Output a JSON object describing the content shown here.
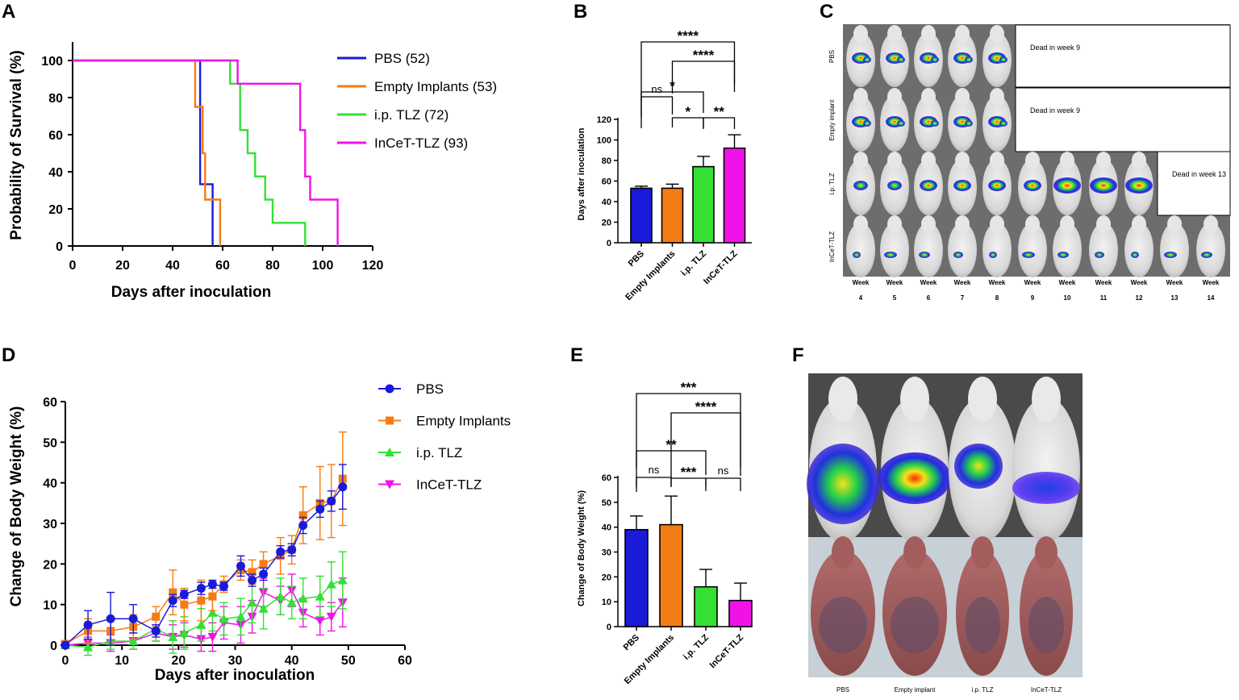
{
  "panels": {
    "A": "A",
    "B": "B",
    "C": "C",
    "D": "D",
    "E": "E",
    "F": "F"
  },
  "colors": {
    "PBS": "#1a1adb",
    "Empty": "#f47c14",
    "ip": "#33e033",
    "InCeT": "#f013e8"
  },
  "chart_data": [
    {
      "id": "A",
      "type": "line",
      "subtype": "kaplan-meier",
      "title": "",
      "xlabel": "Days after inoculation",
      "ylabel": "Probability of Survival (%)",
      "xlim": [
        0,
        120
      ],
      "ylim": [
        0,
        100
      ],
      "xticks": [
        "0",
        "20",
        "40",
        "60",
        "80",
        "100",
        "120"
      ],
      "yticks": [
        "0",
        "20",
        "40",
        "60",
        "80",
        "100"
      ],
      "legend_position": "right",
      "series": [
        {
          "key": "PBS",
          "name": "PBS (52)",
          "x": [
            0,
            51,
            51,
            53,
            53,
            56,
            56
          ],
          "y": [
            100,
            100,
            33.3,
            33.3,
            33.3,
            33.3,
            0
          ]
        },
        {
          "key": "Empty",
          "name": "Empty Implants (53)",
          "x": [
            0,
            49,
            49,
            51,
            51,
            52,
            52,
            53,
            53,
            56,
            56,
            59,
            59
          ],
          "y": [
            100,
            100,
            75,
            75,
            75,
            75,
            50,
            50,
            25,
            25,
            25,
            25,
            0
          ]
        },
        {
          "key": "ip",
          "name": "i.p. TLZ (72)",
          "x": [
            0,
            63,
            63,
            67,
            67,
            70,
            70,
            73,
            73,
            77,
            77,
            80,
            80,
            93,
            93
          ],
          "y": [
            100,
            100,
            87.5,
            87.5,
            62.5,
            62.5,
            50,
            50,
            37.5,
            37.5,
            25,
            25,
            12.5,
            12.5,
            0
          ]
        },
        {
          "key": "InCeT",
          "name": "InCeT-TLZ (93)",
          "x": [
            0,
            66,
            66,
            91,
            91,
            93,
            93,
            95,
            95,
            106,
            106
          ],
          "y": [
            100,
            100,
            87.5,
            87.5,
            62.5,
            62.5,
            37.5,
            37.5,
            25,
            25,
            0
          ]
        }
      ]
    },
    {
      "id": "B",
      "type": "bar",
      "xlabel": "",
      "ylabel": "Days after inoculation",
      "ylim": [
        0,
        120
      ],
      "yticks": [
        "0",
        "20",
        "40",
        "60",
        "80",
        "100",
        "120"
      ],
      "categories": [
        "PBS",
        "Empty Implants",
        "i.p. TLZ",
        "InCeT-TLZ"
      ],
      "values": [
        53,
        53,
        74,
        92
      ],
      "errors": [
        2,
        4,
        10,
        13
      ],
      "significance": [
        {
          "from": 0,
          "to": 3,
          "label": "****"
        },
        {
          "from": 1,
          "to": 3,
          "label": "****"
        },
        {
          "from": 0,
          "to": 2,
          "label": "*"
        },
        {
          "from": 0,
          "to": 1,
          "label": "ns"
        },
        {
          "from": 1,
          "to": 2,
          "label": "*"
        },
        {
          "from": 2,
          "to": 3,
          "label": "**"
        }
      ]
    },
    {
      "id": "C",
      "type": "table",
      "row_labels": [
        "PBS",
        "Empty implant",
        "i.p. TLZ",
        "InCeT-TLZ"
      ],
      "column_labels": [
        "Week",
        "Week",
        "Week",
        "Week",
        "Week",
        "Week",
        "Week",
        "Week",
        "Week",
        "Week",
        "Week"
      ],
      "weeks": [
        "4",
        "5",
        "6",
        "7",
        "8",
        "9",
        "10",
        "11",
        "12",
        "13",
        "14"
      ],
      "alive_weeks": [
        5,
        5,
        9,
        11
      ],
      "notes": [
        "Dead in week 9",
        "Dead in week 9",
        "Dead in week 13",
        ""
      ]
    },
    {
      "id": "D",
      "type": "line",
      "xlabel": "Days after inoculation",
      "ylabel": "Change of Body Weight (%)",
      "xlim": [
        0,
        60
      ],
      "ylim": [
        0,
        60
      ],
      "xticks": [
        "0",
        "10",
        "20",
        "30",
        "40",
        "50",
        "60"
      ],
      "yticks": [
        "0",
        "10",
        "20",
        "30",
        "40",
        "50",
        "60"
      ],
      "legend_position": "top-right",
      "series": [
        {
          "key": "PBS",
          "name": "PBS",
          "marker": "circle",
          "x": [
            0,
            4,
            8,
            12,
            16,
            19,
            21,
            24,
            26,
            28,
            31,
            33,
            35,
            38,
            40,
            42,
            45,
            47,
            49
          ],
          "y": [
            0,
            5,
            6.5,
            6.5,
            3.5,
            11,
            12.5,
            14,
            15,
            14.5,
            19.5,
            16,
            17.5,
            23,
            23.5,
            29.5,
            33.5,
            35.5,
            39
          ],
          "err": [
            0.5,
            3.5,
            6.5,
            3.5,
            1.5,
            1.5,
            1,
            1.5,
            1,
            1,
            2.5,
            1.5,
            1.5,
            1.5,
            1.5,
            2,
            2,
            2.5,
            5.5
          ]
        },
        {
          "key": "Empty",
          "name": "Empty Implants",
          "marker": "square",
          "x": [
            0,
            4,
            8,
            12,
            16,
            19,
            21,
            24,
            26,
            28,
            31,
            33,
            35,
            38,
            40,
            42,
            45,
            47,
            49
          ],
          "y": [
            0.3,
            3.5,
            3.5,
            4.5,
            7,
            13,
            10,
            11,
            12,
            15,
            18.5,
            18,
            20,
            22,
            23.5,
            32,
            35,
            35.5,
            41
          ],
          "err": [
            0.5,
            3,
            3,
            3,
            2.5,
            5.5,
            4,
            5,
            3.5,
            2,
            2.5,
            3,
            3,
            4.5,
            3.5,
            7,
            9,
            9,
            11.5
          ]
        },
        {
          "key": "ip",
          "name": "i.p. TLZ",
          "marker": "triangle-up",
          "x": [
            0,
            4,
            8,
            12,
            16,
            19,
            21,
            24,
            26,
            28,
            31,
            33,
            35,
            38,
            40,
            42,
            45,
            47,
            49
          ],
          "y": [
            0,
            -0.5,
            1,
            1,
            4,
            2,
            3,
            5,
            8,
            6.5,
            7,
            10.5,
            9,
            12,
            10.5,
            11.5,
            12,
            15,
            16
          ],
          "err": [
            0.5,
            2,
            2,
            2,
            3,
            4,
            4,
            4,
            4.5,
            4,
            4.5,
            5,
            5,
            4.5,
            4,
            5,
            5,
            5.5,
            7
          ]
        },
        {
          "key": "InCeT",
          "name": "InCeT-TLZ",
          "marker": "triangle-down",
          "x": [
            0,
            4,
            8,
            12,
            16,
            19,
            21,
            24,
            26,
            28,
            31,
            33,
            35,
            38,
            40,
            42,
            45,
            47,
            49
          ],
          "y": [
            0,
            0.5,
            0.5,
            1,
            3,
            2,
            2.5,
            1.5,
            2,
            5.5,
            5,
            7,
            13,
            11,
            13.5,
            8,
            6,
            7,
            10.5
          ],
          "err": [
            0.5,
            1.5,
            2,
            2,
            2,
            3,
            3,
            3,
            3.5,
            4,
            4.5,
            4,
            3.5,
            3.5,
            4,
            3.5,
            3.5,
            3.5,
            6
          ]
        }
      ]
    },
    {
      "id": "E",
      "type": "bar",
      "xlabel": "",
      "ylabel": "Change of Body Weight (%)",
      "ylim": [
        0,
        60
      ],
      "yticks": [
        "0",
        "10",
        "20",
        "30",
        "40",
        "50",
        "60"
      ],
      "categories": [
        "PBS",
        "Empty Implants",
        "i.p. TLZ",
        "InCeT-TLZ"
      ],
      "values": [
        39,
        41,
        16,
        10.5
      ],
      "errors": [
        5.5,
        11.5,
        7,
        7
      ],
      "significance": [
        {
          "from": 0,
          "to": 3,
          "label": "***"
        },
        {
          "from": 1,
          "to": 3,
          "label": "****"
        },
        {
          "from": 0,
          "to": 2,
          "label": "**"
        },
        {
          "from": 0,
          "to": 1,
          "label": "ns"
        },
        {
          "from": 1,
          "to": 2,
          "label": "***"
        },
        {
          "from": 2,
          "to": 3,
          "label": "ns"
        }
      ]
    },
    {
      "id": "F",
      "type": "table",
      "labels": [
        "PBS",
        "Empty implant",
        "i.p. TLZ",
        "InCeT-TLZ"
      ]
    }
  ]
}
